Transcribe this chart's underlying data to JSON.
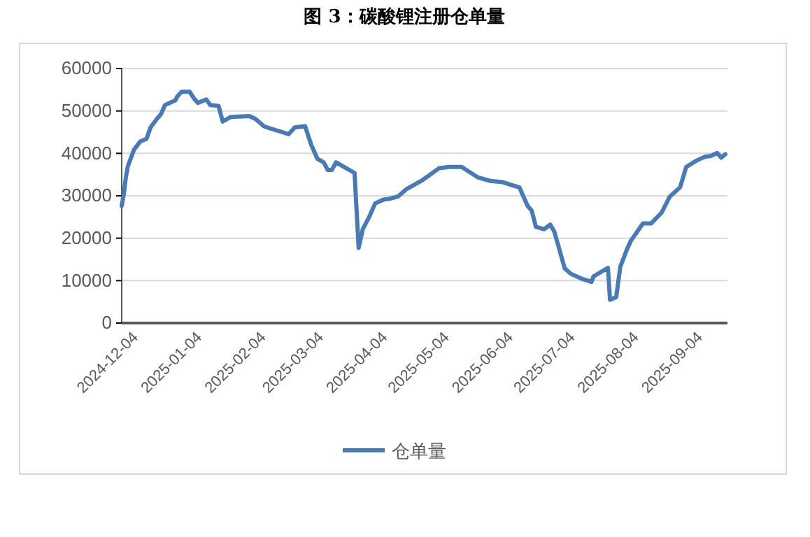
{
  "chart_data": {
    "type": "line",
    "title": "图 3：碳酸锂注册仓单量",
    "legend": "bottom",
    "grid": "y",
    "line_style": "solid",
    "marker": "none",
    "xlim": [
      "2024-11-29",
      "2025-09-19"
    ],
    "xticks": [
      {
        "value": "2024-12-04",
        "label": "2024-12-04"
      },
      {
        "value": "2025-01-04",
        "label": "2025-01-04"
      },
      {
        "value": "2025-02-04",
        "label": "2025-02-04"
      },
      {
        "value": "2025-03-04",
        "label": "2025-03-04"
      },
      {
        "value": "2025-04-04",
        "label": "2025-04-04"
      },
      {
        "value": "2025-05-04",
        "label": "2025-05-04"
      },
      {
        "value": "2025-06-04",
        "label": "2025-06-04"
      },
      {
        "value": "2025-07-04",
        "label": "2025-07-04"
      },
      {
        "value": "2025-08-04",
        "label": "2025-08-04"
      },
      {
        "value": "2025-09-04",
        "label": "2025-09-04"
      }
    ],
    "ylim": [
      0,
      60000
    ],
    "yticks": [
      0,
      10000,
      20000,
      30000,
      40000,
      50000,
      60000
    ],
    "x": [
      "2024-11-29",
      "2024-11-30",
      "2024-12-01",
      "2024-12-02",
      "2024-12-05",
      "2024-12-08",
      "2024-12-11",
      "2024-12-13",
      "2024-12-16",
      "2024-12-18",
      "2024-12-20",
      "2024-12-25",
      "2024-12-26",
      "2024-12-28",
      "2025-01-01",
      "2025-01-03",
      "2025-01-05",
      "2025-01-09",
      "2025-01-11",
      "2025-01-15",
      "2025-01-17",
      "2025-01-21",
      "2025-01-30",
      "2025-02-02",
      "2025-02-06",
      "2025-02-09",
      "2025-02-15",
      "2025-02-18",
      "2025-02-21",
      "2025-02-26",
      "2025-03-01",
      "2025-03-04",
      "2025-03-07",
      "2025-03-09",
      "2025-03-11",
      "2025-03-13",
      "2025-03-18",
      "2025-03-22",
      "2025-03-24",
      "2025-03-26",
      "2025-03-29",
      "2025-04-01",
      "2025-04-05",
      "2025-04-08",
      "2025-04-12",
      "2025-04-16",
      "2025-04-24",
      "2025-05-02",
      "2025-05-07",
      "2025-05-13",
      "2025-05-21",
      "2025-05-27",
      "2025-06-02",
      "2025-06-07",
      "2025-06-10",
      "2025-06-14",
      "2025-06-16",
      "2025-06-18",
      "2025-06-22",
      "2025-06-25",
      "2025-06-27",
      "2025-07-02",
      "2025-07-05",
      "2025-07-10",
      "2025-07-15",
      "2025-07-16",
      "2025-07-23",
      "2025-07-24",
      "2025-07-27",
      "2025-07-29",
      "2025-08-01",
      "2025-08-03",
      "2025-08-09",
      "2025-08-13",
      "2025-08-18",
      "2025-08-22",
      "2025-08-27",
      "2025-08-30",
      "2025-09-04",
      "2025-09-08",
      "2025-09-11",
      "2025-09-14",
      "2025-09-16",
      "2025-09-18"
    ],
    "series": [
      {
        "name": "仓单量",
        "color": "#4a7ab4",
        "values": [
          27600,
          30400,
          34300,
          37000,
          40900,
          42800,
          43400,
          46100,
          48100,
          49200,
          51400,
          52500,
          53400,
          54500,
          54500,
          53000,
          51900,
          52700,
          51400,
          51200,
          47500,
          48600,
          48800,
          48100,
          46400,
          45900,
          45000,
          44500,
          46100,
          46400,
          42000,
          38700,
          37900,
          36100,
          36100,
          37900,
          36500,
          35400,
          17700,
          22100,
          24900,
          28200,
          29100,
          29300,
          29800,
          31500,
          33700,
          36500,
          36800,
          36800,
          34300,
          33500,
          33200,
          32400,
          32000,
          27600,
          26500,
          22700,
          22100,
          23200,
          21500,
          12900,
          11600,
          10500,
          9700,
          11000,
          13000,
          5500,
          6100,
          13300,
          17100,
          19300,
          23500,
          23500,
          26000,
          29800,
          32000,
          36800,
          38300,
          39200,
          39400,
          40100,
          39000,
          39800
        ]
      }
    ]
  }
}
